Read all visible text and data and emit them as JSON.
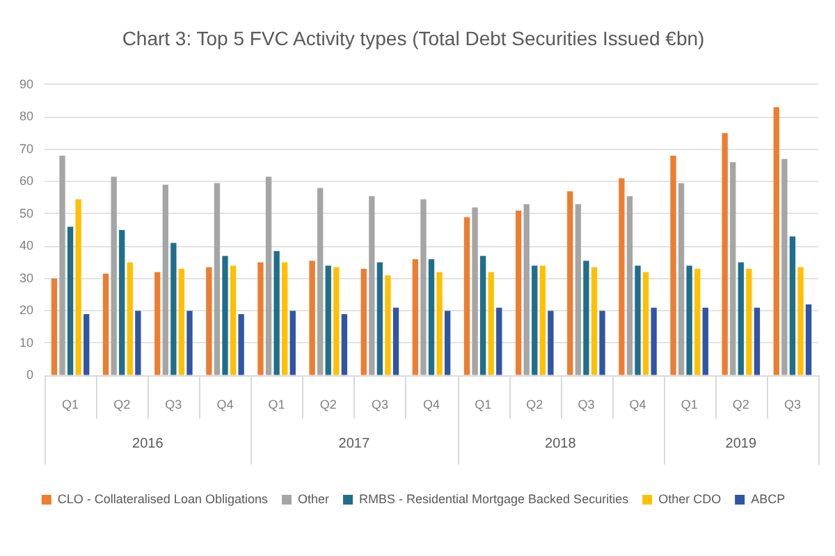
{
  "chart_data": {
    "type": "bar",
    "title": "Chart 3: Top 5 FVC Activity types (Total Debt Securities Issued €bn)",
    "categories": [
      "Q1",
      "Q2",
      "Q3",
      "Q4",
      "Q1",
      "Q2",
      "Q3",
      "Q4",
      "Q1",
      "Q2",
      "Q3",
      "Q4",
      "Q1",
      "Q2",
      "Q3"
    ],
    "annotations": [
      "2016",
      "2017",
      "2018",
      "2019"
    ],
    "series": [
      {
        "name": "CLO - Collateralised Loan Obligations",
        "color": "#ed7d31",
        "values": [
          30,
          31.5,
          32,
          33.5,
          35,
          35.5,
          33,
          36,
          49,
          51,
          57,
          61,
          68,
          75,
          83
        ]
      },
      {
        "name": "Other",
        "color": "#a5a5a5",
        "values": [
          68,
          61.5,
          59,
          59.5,
          61.5,
          58,
          55.5,
          54.5,
          52,
          53,
          53,
          55.5,
          59.5,
          66,
          67
        ]
      },
      {
        "name": "RMBS - Residential Mortgage Backed Securities",
        "color": "#1f6e8c",
        "values": [
          46,
          45,
          41,
          37,
          38.5,
          34,
          35,
          36,
          37,
          34,
          35.5,
          34,
          34,
          35,
          43
        ]
      },
      {
        "name": "Other CDO",
        "color": "#ffc000",
        "values": [
          54.5,
          35,
          33,
          34,
          35,
          33.5,
          31,
          32,
          32,
          34,
          33.5,
          32,
          33,
          33,
          33.5
        ]
      },
      {
        "name": "ABCP",
        "color": "#2f55a4",
        "values": [
          19,
          20,
          20,
          19,
          20,
          19,
          21,
          20,
          21,
          20,
          20,
          21,
          21,
          21,
          22
        ]
      }
    ],
    "ylim": [
      0,
      90
    ],
    "yticks": [
      0,
      10,
      20,
      30,
      40,
      50,
      60,
      70,
      80,
      90
    ],
    "grid": "y",
    "legend": "bottom"
  }
}
